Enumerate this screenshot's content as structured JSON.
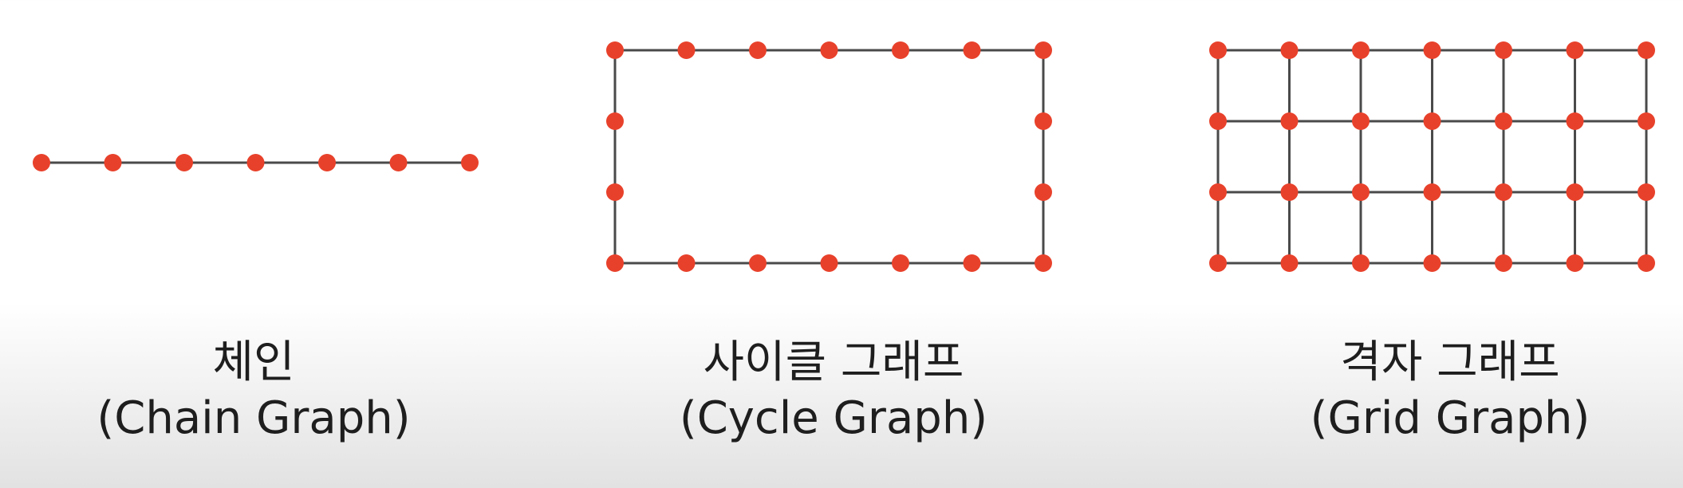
{
  "colors": {
    "node": "#e8412b",
    "edge": "#4a4a4a",
    "text": "#1e1e1e"
  },
  "graphs": [
    {
      "id": "chain",
      "type": "chain",
      "rows": 1,
      "cols": 7,
      "title_ko": "체인",
      "title_en": "(Chain Graph)"
    },
    {
      "id": "cycle",
      "type": "cycle",
      "rows": 4,
      "cols": 7,
      "title_ko": "사이클 그래프",
      "title_en": "(Cycle Graph)"
    },
    {
      "id": "grid",
      "type": "grid",
      "rows": 4,
      "cols": 7,
      "title_ko": "격자 그래프",
      "title_en": "(Grid Graph)"
    }
  ]
}
